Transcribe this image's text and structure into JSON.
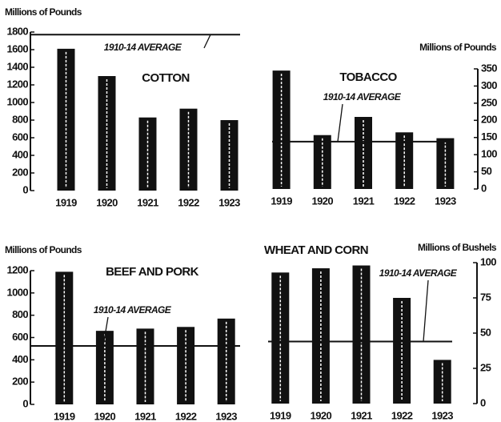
{
  "chart_data": [
    {
      "type": "bar",
      "title": "COTTON",
      "y_label": "Millions of Pounds",
      "axis_side": "left",
      "categories": [
        "1919",
        "1920",
        "1921",
        "1922",
        "1923"
      ],
      "values": [
        1610,
        1300,
        830,
        930,
        800
      ],
      "color": "#111111",
      "average": 1770,
      "average_label": "1910-14 AVERAGE",
      "ylim": [
        0,
        1800
      ],
      "yticks": [
        0,
        200,
        400,
        600,
        800,
        1000,
        1200,
        1400,
        1600,
        1800
      ]
    },
    {
      "type": "bar",
      "title": "TOBACCO",
      "y_label": "Millions of Pounds",
      "axis_side": "right",
      "categories": [
        "1919",
        "1920",
        "1921",
        "1922",
        "1923"
      ],
      "values": [
        345,
        157,
        210,
        165,
        148
      ],
      "color": "#111111",
      "average": 138,
      "average_label": "1910-14 AVERAGE",
      "ylim": [
        0,
        350
      ],
      "yticks": [
        0,
        50,
        100,
        150,
        200,
        250,
        300,
        350
      ]
    },
    {
      "type": "bar",
      "title": "BEEF AND PORK",
      "y_label": "Millions of Pounds",
      "axis_side": "left",
      "categories": [
        "1919",
        "1920",
        "1921",
        "1922",
        "1923"
      ],
      "values": [
        1190,
        660,
        680,
        695,
        770
      ],
      "color": "#111111",
      "average": 525,
      "average_label": "1910-14 AVERAGE",
      "ylim": [
        0,
        1200
      ],
      "yticks": [
        0,
        200,
        400,
        600,
        800,
        1000,
        1200
      ]
    },
    {
      "type": "bar",
      "title": "WHEAT AND CORN",
      "y_label": "Millions of Bushels",
      "axis_side": "right",
      "categories": [
        "1919",
        "1920",
        "1921",
        "1922",
        "1923"
      ],
      "values": [
        93,
        96,
        98,
        75,
        31
      ],
      "color": "#111111",
      "average": 44,
      "average_label": "1910-14 AVERAGE",
      "ylim": [
        0,
        100
      ],
      "yticks": [
        0,
        25,
        50,
        75,
        100
      ]
    }
  ]
}
